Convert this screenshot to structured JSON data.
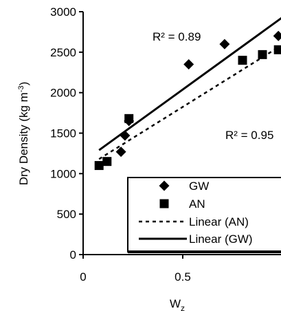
{
  "chart_data": {
    "type": "scatter",
    "xlabel": "W",
    "xlabel_sub": "z",
    "ylabel": "Dry Density (kg m",
    "ylabel_sup": "-3",
    "ylabel_end": ")",
    "xlim": [
      0,
      1.0
    ],
    "ylim": [
      0,
      3000
    ],
    "xticks": [
      0,
      0.5
    ],
    "xtick_labels": [
      "0",
      "0.5"
    ],
    "yticks": [
      0,
      500,
      1000,
      1500,
      2000,
      2500,
      3000
    ],
    "ytick_labels": [
      "0",
      "500",
      "1000",
      "1500",
      "2000",
      "2500",
      "3000"
    ],
    "grid": false,
    "legend_position": "bottom-right",
    "series": [
      {
        "name": "GW",
        "marker": "diamond",
        "x": [
          0.19,
          0.21,
          0.23,
          0.53,
          0.71,
          0.98
        ],
        "y": [
          1270,
          1470,
          1650,
          2350,
          2600,
          2700
        ]
      },
      {
        "name": "AN",
        "marker": "square",
        "x": [
          0.08,
          0.12,
          0.23,
          0.8,
          0.9,
          0.98
        ],
        "y": [
          1100,
          1150,
          1680,
          2400,
          2470,
          2530
        ]
      }
    ],
    "trendlines": [
      {
        "name": "Linear (AN)",
        "style": "dashed",
        "x": [
          0.08,
          0.98
        ],
        "y": [
          1180,
          2560
        ],
        "r2_label": "R² = 0.95"
      },
      {
        "name": "Linear (GW)",
        "style": "solid",
        "x": [
          0.08,
          1.0
        ],
        "y": [
          1290,
          2930
        ],
        "r2_label": "R² = 0.89"
      }
    ]
  }
}
